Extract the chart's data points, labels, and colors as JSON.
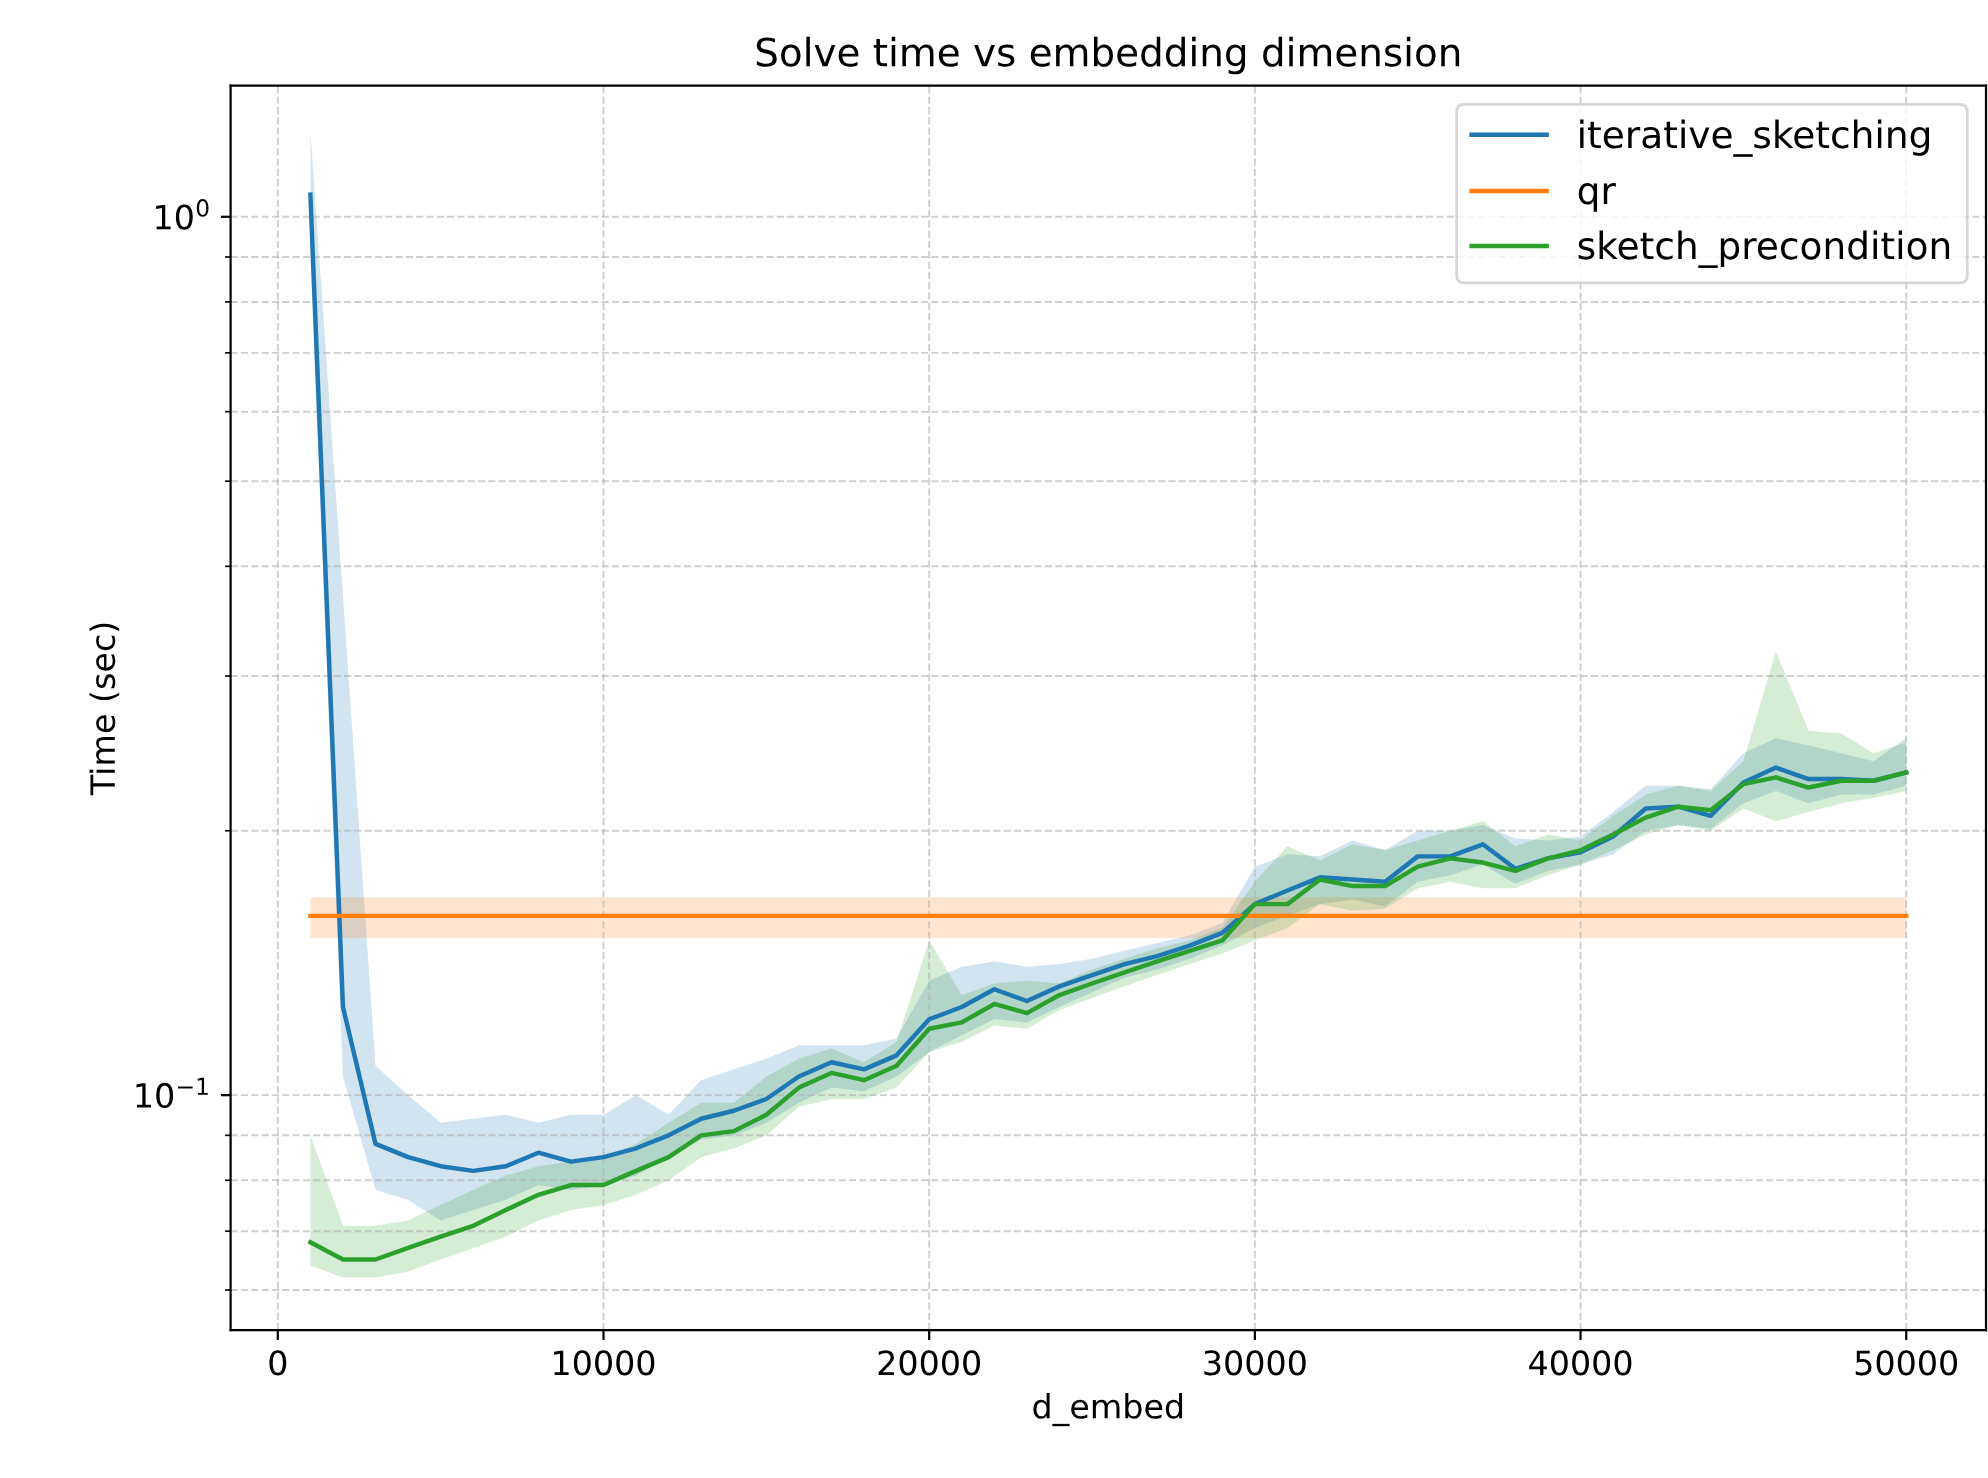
{
  "chart_data": {
    "type": "line",
    "title": "Solve time vs embedding dimension",
    "xlabel": "d_embed",
    "ylabel": "Time (sec)",
    "log": "y",
    "grid": true,
    "legend": "top right",
    "line_style": "solid",
    "marker": "none",
    "xlim": [
      -1450,
      52450
    ],
    "xticks": [
      0,
      10000,
      20000,
      30000,
      40000,
      50000
    ],
    "ylim": [
      0.054,
      1.41
    ],
    "yticks": [
      {
        "value": 0.06,
        "label": null
      },
      {
        "value": 0.07,
        "label": null
      },
      {
        "value": 0.08,
        "label": null
      },
      {
        "value": 0.09,
        "label": null
      },
      {
        "value": 0.1,
        "label": "10$^{−1}$"
      },
      {
        "value": 0.2,
        "label": null
      },
      {
        "value": 0.3,
        "label": null
      },
      {
        "value": 0.4,
        "label": null
      },
      {
        "value": 0.5,
        "label": null
      },
      {
        "value": 0.6,
        "label": null
      },
      {
        "value": 0.7,
        "label": null
      },
      {
        "value": 0.8,
        "label": null
      },
      {
        "value": 0.9,
        "label": null
      },
      {
        "value": 1,
        "label": "10$^{0}$"
      }
    ],
    "x": [
      1000,
      2000,
      3000,
      4000,
      5000,
      6000,
      7000,
      8000,
      9000,
      10000,
      11000,
      12000,
      13000,
      14000,
      15000,
      16000,
      17000,
      18000,
      19000,
      20000,
      21000,
      22000,
      23000,
      24000,
      25000,
      26000,
      27000,
      28000,
      29000,
      30000,
      31000,
      32000,
      33000,
      34000,
      35000,
      36000,
      37000,
      38000,
      39000,
      40000,
      41000,
      42000,
      43000,
      44000,
      45000,
      46000,
      47000,
      48000,
      49000,
      50000
    ],
    "series": [
      {
        "name": "iterative_sketching",
        "color": "#1f77b4",
        "values": [
          1.06,
          0.126,
          0.088,
          0.085,
          0.083,
          0.082,
          0.083,
          0.086,
          0.084,
          0.085,
          0.087,
          0.09,
          0.094,
          0.096,
          0.099,
          0.105,
          0.109,
          0.107,
          0.111,
          0.122,
          0.126,
          0.132,
          0.128,
          0.133,
          0.137,
          0.141,
          0.144,
          0.148,
          0.153,
          0.165,
          0.171,
          0.177,
          0.176,
          0.175,
          0.187,
          0.187,
          0.193,
          0.181,
          0.186,
          0.189,
          0.197,
          0.212,
          0.213,
          0.208,
          0.227,
          0.236,
          0.229,
          0.229,
          0.228,
          0.233
        ],
        "lower": [
          0.9,
          0.105,
          0.078,
          0.076,
          0.072,
          0.074,
          0.076,
          0.079,
          0.078,
          0.079,
          0.081,
          0.085,
          0.089,
          0.09,
          0.093,
          0.098,
          0.102,
          0.101,
          0.105,
          0.112,
          0.117,
          0.122,
          0.121,
          0.126,
          0.131,
          0.136,
          0.139,
          0.143,
          0.148,
          0.155,
          0.16,
          0.165,
          0.167,
          0.164,
          0.175,
          0.178,
          0.183,
          0.174,
          0.18,
          0.183,
          0.188,
          0.2,
          0.203,
          0.201,
          0.215,
          0.222,
          0.215,
          0.22,
          0.22,
          0.225
        ],
        "upper": [
          1.25,
          0.37,
          0.108,
          0.1,
          0.093,
          0.094,
          0.095,
          0.093,
          0.095,
          0.095,
          0.1,
          0.095,
          0.104,
          0.107,
          0.11,
          0.114,
          0.114,
          0.114,
          0.116,
          0.135,
          0.14,
          0.142,
          0.14,
          0.141,
          0.143,
          0.146,
          0.149,
          0.152,
          0.157,
          0.182,
          0.188,
          0.187,
          0.195,
          0.19,
          0.2,
          0.2,
          0.203,
          0.196,
          0.195,
          0.197,
          0.21,
          0.225,
          0.225,
          0.223,
          0.245,
          0.255,
          0.25,
          0.245,
          0.24,
          0.255
        ]
      },
      {
        "name": "qr",
        "color": "#ff7f0e",
        "x": [
          1000,
          50000
        ],
        "values": [
          0.16,
          0.16
        ],
        "lower": [
          0.151,
          0.151
        ],
        "upper": [
          0.168,
          0.168
        ]
      },
      {
        "name": "sketch_precondition",
        "color": "#2ca02c",
        "values": [
          0.068,
          0.065,
          0.065,
          0.067,
          0.069,
          0.071,
          0.074,
          0.077,
          0.079,
          0.079,
          0.082,
          0.085,
          0.09,
          0.091,
          0.095,
          0.102,
          0.106,
          0.104,
          0.108,
          0.119,
          0.121,
          0.127,
          0.124,
          0.13,
          0.134,
          0.138,
          0.142,
          0.146,
          0.15,
          0.165,
          0.165,
          0.176,
          0.173,
          0.173,
          0.182,
          0.186,
          0.184,
          0.18,
          0.186,
          0.19,
          0.198,
          0.207,
          0.213,
          0.211,
          0.226,
          0.23,
          0.224,
          0.228,
          0.228,
          0.233
        ],
        "lower": [
          0.064,
          0.062,
          0.062,
          0.063,
          0.065,
          0.067,
          0.069,
          0.072,
          0.074,
          0.075,
          0.077,
          0.08,
          0.085,
          0.087,
          0.09,
          0.097,
          0.099,
          0.099,
          0.102,
          0.112,
          0.115,
          0.12,
          0.119,
          0.125,
          0.129,
          0.133,
          0.137,
          0.141,
          0.145,
          0.15,
          0.155,
          0.165,
          0.162,
          0.163,
          0.172,
          0.175,
          0.172,
          0.172,
          0.178,
          0.183,
          0.19,
          0.198,
          0.203,
          0.2,
          0.212,
          0.205,
          0.21,
          0.215,
          0.218,
          0.222
        ],
        "upper": [
          0.09,
          0.071,
          0.071,
          0.072,
          0.075,
          0.078,
          0.081,
          0.083,
          0.084,
          0.085,
          0.088,
          0.093,
          0.098,
          0.098,
          0.105,
          0.11,
          0.113,
          0.109,
          0.115,
          0.15,
          0.13,
          0.134,
          0.135,
          0.134,
          0.139,
          0.143,
          0.147,
          0.15,
          0.155,
          0.175,
          0.192,
          0.185,
          0.193,
          0.19,
          0.195,
          0.2,
          0.205,
          0.192,
          0.198,
          0.195,
          0.208,
          0.22,
          0.225,
          0.222,
          0.24,
          0.32,
          0.26,
          0.258,
          0.245,
          0.252
        ]
      }
    ]
  }
}
